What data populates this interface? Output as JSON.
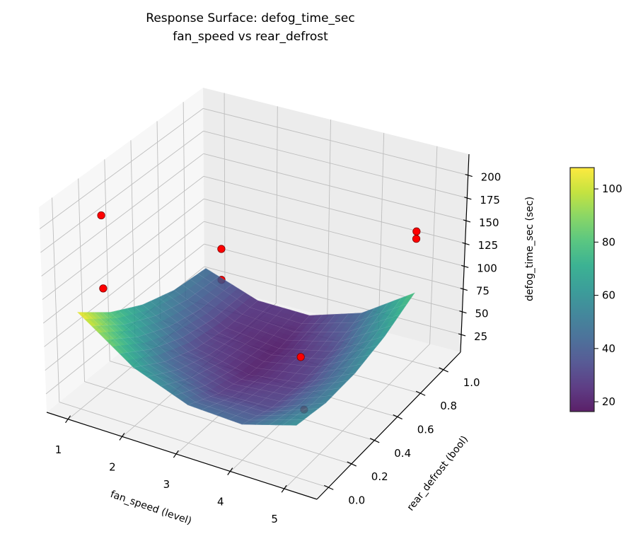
{
  "chart_data": {
    "type": "surface",
    "title": [
      "Response Surface: defog_time_sec",
      "fan_speed vs rear_defrost"
    ],
    "xlabel": "fan_speed (level)",
    "ylabel": "rear_defrost (bool)",
    "zlabel": "defog_time_sec (sec)",
    "xlim": [
      0.6,
      5.6
    ],
    "ylim": [
      -0.1,
      1.15
    ],
    "zlim": [
      5.5,
      223
    ],
    "xticks": [
      1,
      2,
      3,
      4,
      5
    ],
    "xtick_labels": [
      "1",
      "2",
      "3",
      "4",
      "5"
    ],
    "yticks": [
      0,
      0.2,
      0.4,
      0.6,
      0.8,
      1.0
    ],
    "ytick_labels": [
      "0.0",
      "0.2",
      "0.4",
      "0.6",
      "0.8",
      "1.0"
    ],
    "zticks": [
      25,
      50,
      75,
      100,
      125,
      150,
      175,
      200
    ],
    "ztick_labels": [
      "25",
      "50",
      "75",
      "100",
      "125",
      "150",
      "175",
      "200"
    ],
    "grid": true,
    "colormap": "viridis",
    "surface": {
      "x": [
        1,
        2,
        3,
        4,
        5
      ],
      "y": [
        0,
        0.25,
        0.5,
        0.75,
        1.0
      ],
      "z": [
        [
          107.9,
          81.1,
          61.9,
          50.2,
          46.0
        ],
        [
          67.1,
          45.5,
          31.5,
          25.0,
          26.0
        ],
        [
          45.2,
          28.9,
          20.1,
          18.8,
          25.0
        ],
        [
          42.5,
          31.3,
          27.7,
          31.6,
          43.0
        ],
        [
          58.7,
          52.7,
          54.3,
          63.4,
          80.0
        ]
      ]
    },
    "points": [
      {
        "x": 1.0,
        "y": 0.2,
        "z": 190
      },
      {
        "x": 1.0,
        "y": 0.2,
        "z": 112
      },
      {
        "x": 1.3,
        "y": 1.0,
        "z": 72
      },
      {
        "x": 1.3,
        "y": 1.0,
        "z": 38
      },
      {
        "x": 4.2,
        "y": 0.4,
        "z": 70
      },
      {
        "x": 4.6,
        "y": 0.25,
        "z": 39
      },
      {
        "x": 5.0,
        "y": 1.0,
        "z": 147
      },
      {
        "x": 5.0,
        "y": 1.0,
        "z": 139
      }
    ],
    "point_color": "#ff0000",
    "colorbar": {
      "range": [
        16.3,
        108
      ],
      "ticks": [
        20,
        40,
        60,
        80,
        100
      ],
      "tick_labels": [
        "20",
        "40",
        "60",
        "80",
        "100"
      ],
      "placement": "right"
    }
  }
}
